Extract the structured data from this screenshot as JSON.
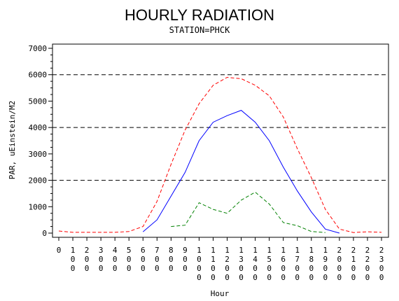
{
  "chart_data": {
    "type": "line",
    "title": "HOURLY RADIATION",
    "subtitle": "STATION=PHCK",
    "xlabel": "Hour",
    "ylabel": "PAR, uEinstein/M2",
    "ylim": [
      0,
      7000
    ],
    "y_ticks": [
      0,
      1000,
      2000,
      3000,
      4000,
      5000,
      6000,
      7000
    ],
    "x": [
      0,
      100,
      200,
      300,
      400,
      500,
      600,
      700,
      800,
      900,
      1000,
      1100,
      1200,
      1300,
      1400,
      1500,
      1600,
      1700,
      1800,
      1900,
      2000,
      2100,
      2200,
      2300
    ],
    "x_tick_labels": [
      "0",
      "100",
      "200",
      "300",
      "400",
      "500",
      "600",
      "700",
      "800",
      "900",
      "1000",
      "1100",
      "1200",
      "1300",
      "1400",
      "1500",
      "1600",
      "1700",
      "1800",
      "1900",
      "2000",
      "2100",
      "2200",
      "2300"
    ],
    "reference_lines": [
      2000,
      4000,
      6000
    ],
    "series": [
      {
        "color": "#ff0000",
        "dash": "dashed",
        "x": [
          0,
          100,
          200,
          300,
          400,
          500,
          600,
          700,
          800,
          900,
          1000,
          1100,
          1200,
          1300,
          1400,
          1500,
          1600,
          1700,
          1800,
          1900,
          2000,
          2100,
          2200,
          2300
        ],
        "values": [
          80,
          30,
          30,
          30,
          30,
          60,
          250,
          1200,
          2600,
          3900,
          4900,
          5600,
          5900,
          5850,
          5600,
          5200,
          4400,
          3200,
          2100,
          900,
          150,
          20,
          50,
          30
        ]
      },
      {
        "color": "#0000ff",
        "dash": "solid",
        "x": [
          600,
          700,
          800,
          900,
          1000,
          1100,
          1200,
          1300,
          1400,
          1500,
          1600,
          1700,
          1800,
          1900,
          2000
        ],
        "values": [
          50,
          500,
          1400,
          2300,
          3500,
          4200,
          4450,
          4650,
          4200,
          3500,
          2500,
          1600,
          800,
          150,
          0
        ]
      },
      {
        "color": "#008000",
        "dash": "dashed",
        "x": [
          800,
          900,
          1000,
          1100,
          1200,
          1300,
          1400,
          1500,
          1600,
          1700,
          1800,
          1900
        ],
        "values": [
          250,
          300,
          1150,
          900,
          750,
          1250,
          1550,
          1100,
          400,
          280,
          60,
          20
        ]
      }
    ]
  }
}
